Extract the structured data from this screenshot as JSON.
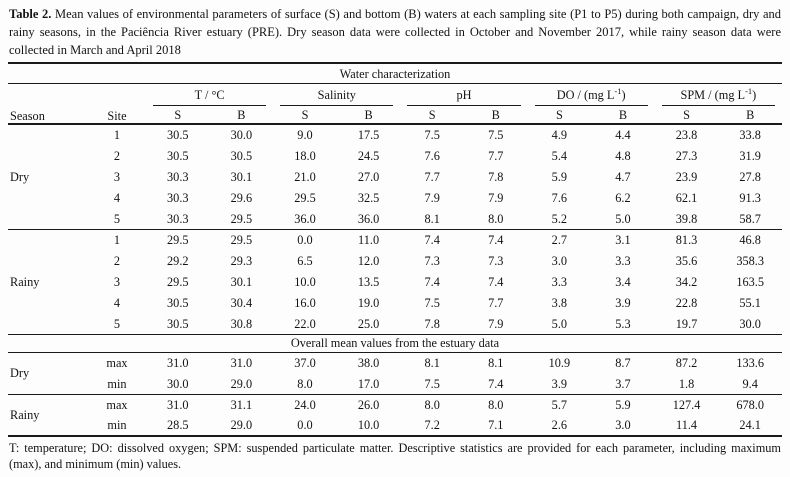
{
  "caption": {
    "label": "Table 2.",
    "text": "Mean values of environmental parameters of surface (S) and bottom (B) waters at each sampling site (P1 to P5) during both campaign, dry and rainy seasons, in the Paciência River estuary (PRE). Dry season data were collected in October and November 2017, while rainy season data were collected in March and April 2018"
  },
  "table": {
    "title": "Water characterization",
    "season_header": "Season",
    "site_header": "Site",
    "groups": [
      {
        "prefix": "T / °C"
      },
      {
        "prefix": "Salinity"
      },
      {
        "prefix": "pH"
      },
      {
        "prefix": "DO / (mg L",
        "sup": "-1",
        "suffix": ")"
      },
      {
        "prefix": "SPM / (mg L",
        "sup": "-1",
        "suffix": ")"
      }
    ],
    "subheaders": [
      "S",
      "B"
    ],
    "seasons": [
      {
        "label": "Dry",
        "rows": [
          {
            "site": "1",
            "values": [
              "30.5",
              "30.0",
              "9.0",
              "17.5",
              "7.5",
              "7.5",
              "4.9",
              "4.4",
              "23.8",
              "33.8"
            ]
          },
          {
            "site": "2",
            "values": [
              "30.5",
              "30.5",
              "18.0",
              "24.5",
              "7.6",
              "7.7",
              "5.4",
              "4.8",
              "27.3",
              "31.9"
            ]
          },
          {
            "site": "3",
            "values": [
              "30.3",
              "30.1",
              "21.0",
              "27.0",
              "7.7",
              "7.8",
              "5.9",
              "4.7",
              "23.9",
              "27.8"
            ]
          },
          {
            "site": "4",
            "values": [
              "30.3",
              "29.6",
              "29.5",
              "32.5",
              "7.9",
              "7.9",
              "7.6",
              "6.2",
              "62.1",
              "91.3"
            ]
          },
          {
            "site": "5",
            "values": [
              "30.3",
              "29.5",
              "36.0",
              "36.0",
              "8.1",
              "8.0",
              "5.2",
              "5.0",
              "39.8",
              "58.7"
            ]
          }
        ]
      },
      {
        "label": "Rainy",
        "rows": [
          {
            "site": "1",
            "values": [
              "29.5",
              "29.5",
              "0.0",
              "11.0",
              "7.4",
              "7.4",
              "2.7",
              "3.1",
              "81.3",
              "46.8"
            ]
          },
          {
            "site": "2",
            "values": [
              "29.2",
              "29.3",
              "6.5",
              "12.0",
              "7.3",
              "7.3",
              "3.0",
              "3.3",
              "35.6",
              "358.3"
            ]
          },
          {
            "site": "3",
            "values": [
              "29.5",
              "30.1",
              "10.0",
              "13.5",
              "7.4",
              "7.4",
              "3.3",
              "3.4",
              "34.2",
              "163.5"
            ]
          },
          {
            "site": "4",
            "values": [
              "30.5",
              "30.4",
              "16.0",
              "19.0",
              "7.5",
              "7.7",
              "3.8",
              "3.9",
              "22.8",
              "55.1"
            ]
          },
          {
            "site": "5",
            "values": [
              "30.5",
              "30.8",
              "22.0",
              "25.0",
              "7.8",
              "7.9",
              "5.0",
              "5.3",
              "19.7",
              "30.0"
            ]
          }
        ]
      }
    ],
    "overall": {
      "title": "Overall mean values from the estuary data",
      "seasons": [
        {
          "label": "Dry",
          "rows": [
            {
              "stat": "max",
              "values": [
                "31.0",
                "31.0",
                "37.0",
                "38.0",
                "8.1",
                "8.1",
                "10.9",
                "8.7",
                "87.2",
                "133.6"
              ]
            },
            {
              "stat": "min",
              "values": [
                "30.0",
                "29.0",
                "8.0",
                "17.0",
                "7.5",
                "7.4",
                "3.9",
                "3.7",
                "1.8",
                "9.4"
              ]
            }
          ]
        },
        {
          "label": "Rainy",
          "rows": [
            {
              "stat": "max",
              "values": [
                "31.0",
                "31.1",
                "24.0",
                "26.0",
                "8.0",
                "8.0",
                "5.7",
                "5.9",
                "127.4",
                "678.0"
              ]
            },
            {
              "stat": "min",
              "values": [
                "28.5",
                "29.0",
                "0.0",
                "10.0",
                "7.2",
                "7.1",
                "2.6",
                "3.0",
                "11.4",
                "24.1"
              ]
            }
          ]
        }
      ]
    }
  },
  "footnote": "T: temperature; DO: dissolved oxygen; SPM: suspended particulate matter. Descriptive statistics are provided for each parameter, including maximum (max), and minimum (min) values."
}
